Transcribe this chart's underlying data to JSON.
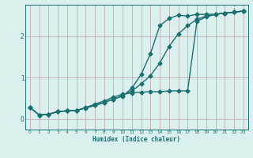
{
  "xlabel": "Humidex (Indice chaleur)",
  "bg_color": "#d9f0ee",
  "grid_color": "#c0a0a8",
  "line_color": "#1a7070",
  "marker": "D",
  "markersize": 2.5,
  "linewidth": 1.0,
  "xlim": [
    -0.5,
    23.5
  ],
  "ylim": [
    -0.25,
    2.75
  ],
  "yticks": [
    0,
    1,
    2
  ],
  "xticks": [
    0,
    1,
    2,
    3,
    4,
    5,
    6,
    7,
    8,
    9,
    10,
    11,
    12,
    13,
    14,
    15,
    16,
    17,
    18,
    19,
    20,
    21,
    22,
    23
  ],
  "line1_x": [
    0,
    1,
    2,
    3,
    4,
    5,
    6,
    7,
    8,
    9,
    10,
    11,
    12,
    13,
    14,
    15,
    16,
    17,
    18,
    19,
    20,
    21,
    22,
    23
  ],
  "line1_y": [
    0.28,
    0.1,
    0.12,
    0.18,
    0.2,
    0.21,
    0.27,
    0.33,
    0.4,
    0.48,
    0.57,
    0.68,
    0.85,
    1.05,
    1.35,
    1.75,
    2.05,
    2.25,
    2.4,
    2.48,
    2.52,
    2.55,
    2.57,
    2.6
  ],
  "line2_x": [
    0,
    1,
    2,
    3,
    4,
    5,
    6,
    7,
    8,
    9,
    10,
    11,
    12,
    13,
    14,
    15,
    16,
    17,
    18,
    19,
    20,
    21,
    22,
    23
  ],
  "line2_y": [
    0.28,
    0.1,
    0.12,
    0.18,
    0.2,
    0.21,
    0.28,
    0.36,
    0.44,
    0.53,
    0.6,
    0.63,
    0.65,
    0.66,
    0.66,
    0.68,
    0.68,
    0.68,
    2.35,
    2.46,
    2.52,
    2.55,
    2.57,
    2.6
  ],
  "line3_x": [
    0,
    1,
    2,
    3,
    4,
    5,
    6,
    7,
    8,
    9,
    10,
    11,
    12,
    13,
    14,
    15,
    16,
    17,
    18,
    19,
    20,
    21,
    22,
    23
  ],
  "line3_y": [
    0.28,
    0.1,
    0.12,
    0.18,
    0.2,
    0.21,
    0.27,
    0.33,
    0.4,
    0.48,
    0.55,
    0.75,
    1.08,
    1.58,
    2.25,
    2.42,
    2.5,
    2.48,
    2.52,
    2.52,
    2.52,
    2.55,
    2.57,
    2.6
  ]
}
